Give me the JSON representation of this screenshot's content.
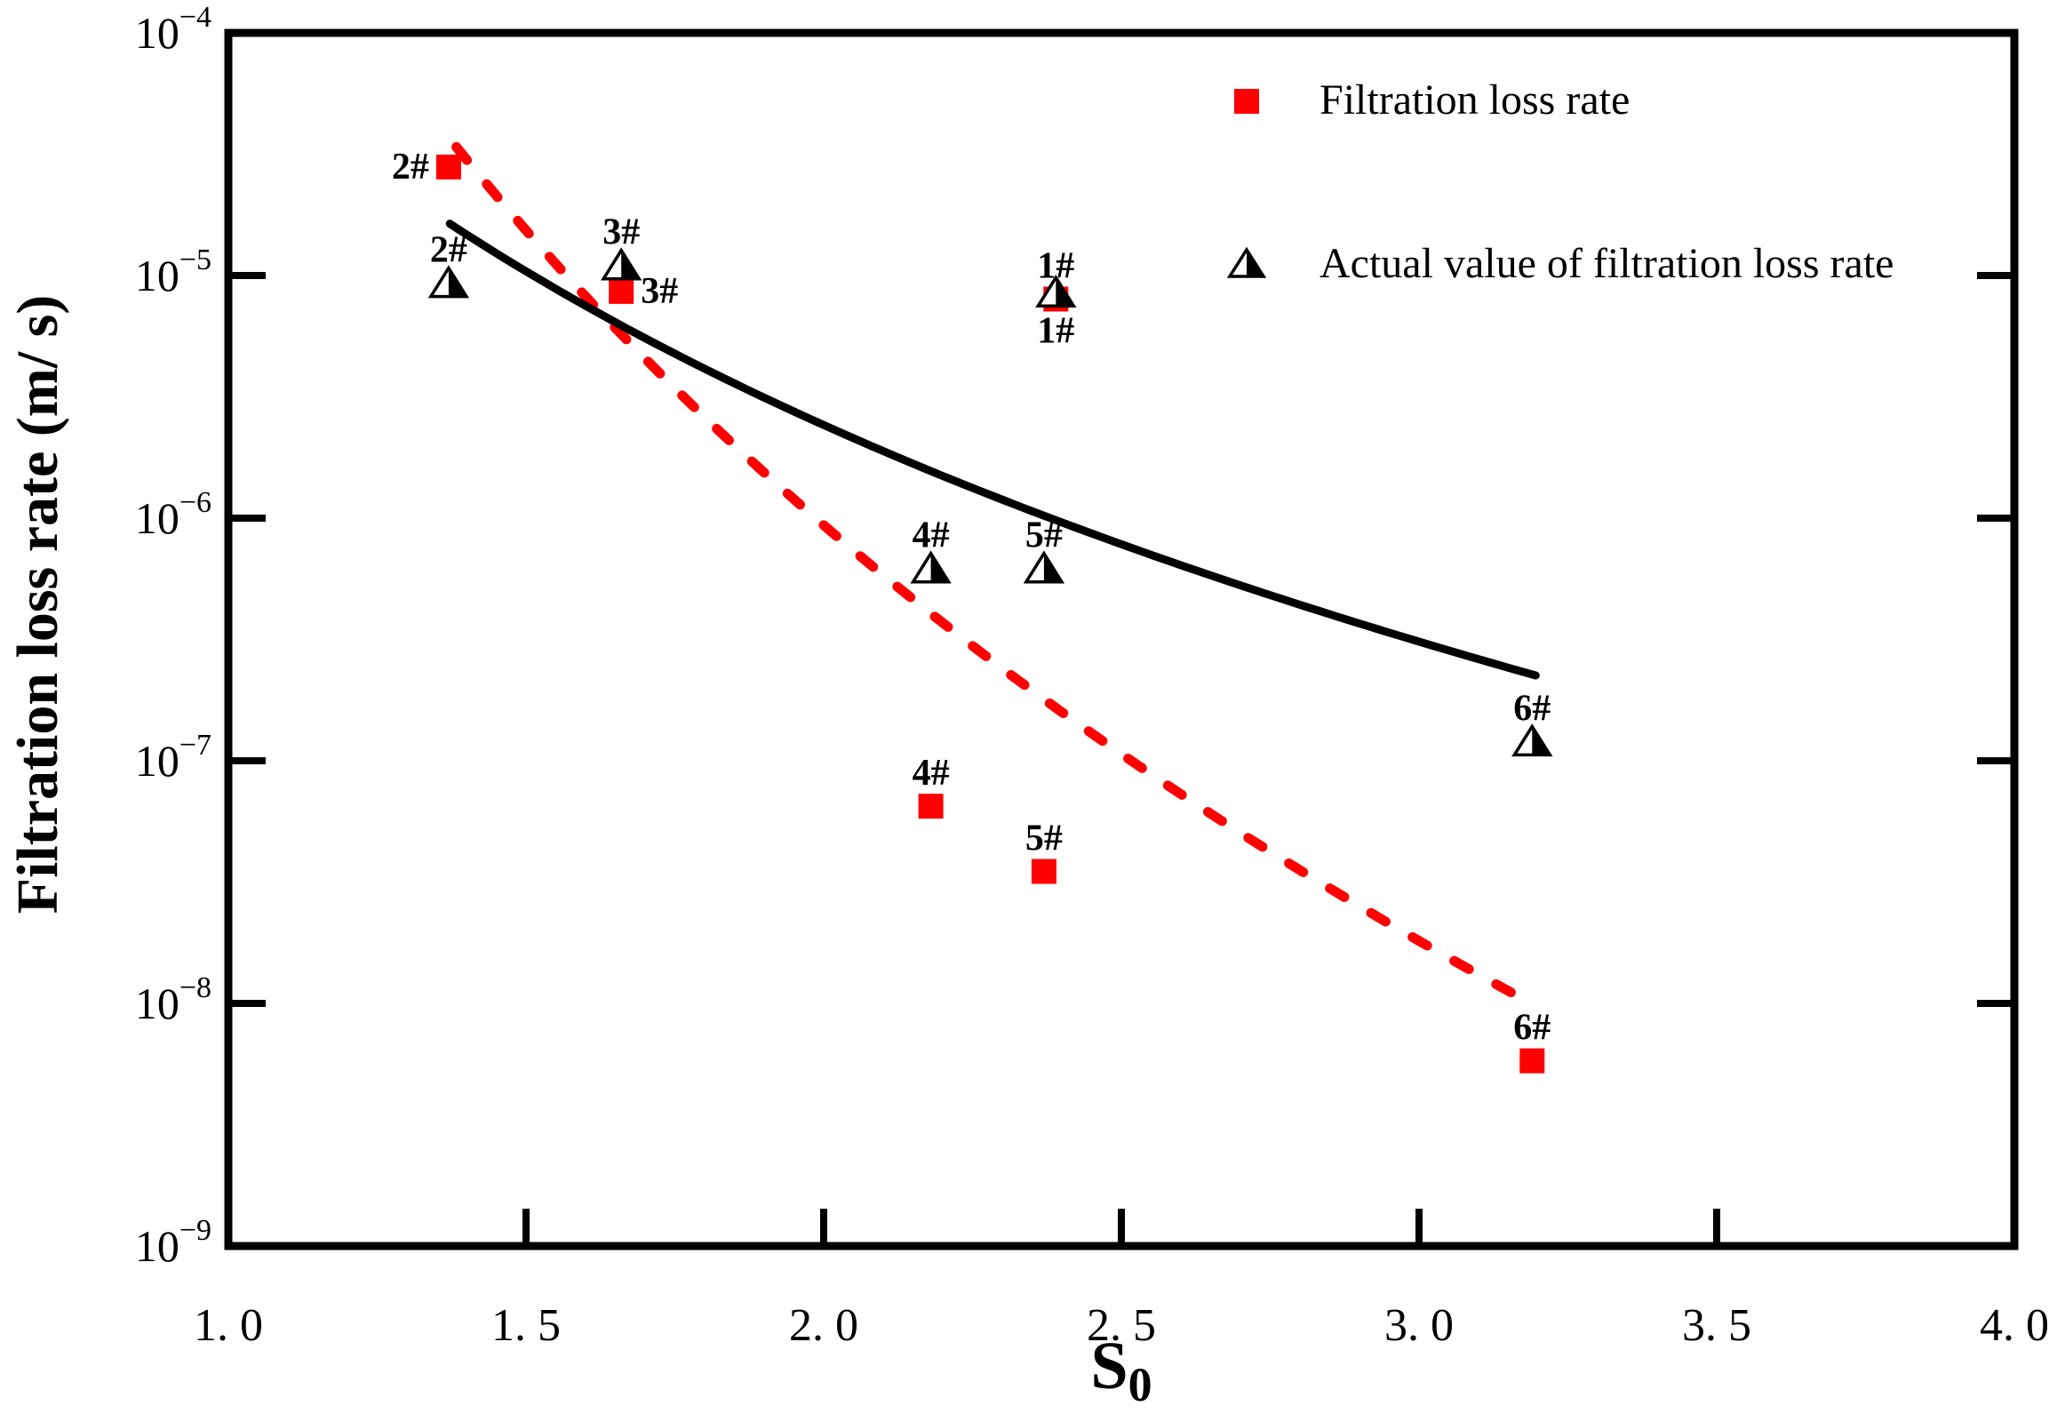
{
  "figure": {
    "background": "#ffffff",
    "accent_red": "#ff0000",
    "accent_black": "#000000"
  },
  "chart_data": {
    "type": "scatter",
    "title": "",
    "xlabel": {
      "base": "S",
      "sub": "0"
    },
    "ylabel": "Filtration loss rate (m/ s)",
    "x_axis": {
      "min": 1.0,
      "max": 4.0,
      "tick_values": [
        1.0,
        1.5,
        2.0,
        2.5,
        3.0,
        3.5,
        4.0
      ],
      "tick_labels": [
        "1. 0",
        "1. 5",
        "2. 0",
        "2. 5",
        "3. 0",
        "3. 5",
        "4. 0"
      ],
      "inner_tick_values": [
        1.5,
        2.0,
        2.5,
        3.0,
        3.5
      ]
    },
    "y_axis": {
      "scale": "log",
      "min": 1e-09,
      "max": 0.0001,
      "tick_exponents": [
        -4,
        -5,
        -6,
        -7,
        -8,
        -9
      ],
      "inner_tick_exponents": [
        -5,
        -6,
        -7,
        -8
      ],
      "label_format": "10^exp"
    },
    "grid": false,
    "legend_position": "top-right",
    "legend": {
      "items": [
        {
          "label": "Filtration loss rate",
          "marker": "square",
          "color": "#ff0000"
        },
        {
          "label": "Actual value of filtration loss rate",
          "marker": "triangle-half",
          "color": "#000000"
        }
      ]
    },
    "series": [
      {
        "name": "Filtration loss rate",
        "marker": "square",
        "color": "#ff0000",
        "points": [
          {
            "label": "1#",
            "x": 2.39,
            "y": 8e-06,
            "label_pos": "above"
          },
          {
            "label": "2#",
            "x": 1.37,
            "y": 2.8e-05,
            "label_pos": "left"
          },
          {
            "label": "3#",
            "x": 1.66,
            "y": 8.6e-06,
            "label_pos": "right"
          },
          {
            "label": "4#",
            "x": 2.18,
            "y": 6.5e-08,
            "label_pos": "above"
          },
          {
            "label": "5#",
            "x": 2.37,
            "y": 3.5e-08,
            "label_pos": "above"
          },
          {
            "label": "6#",
            "x": 3.19,
            "y": 5.8e-09,
            "label_pos": "above"
          }
        ]
      },
      {
        "name": "Actual value of filtration loss rate",
        "marker": "triangle-half",
        "color": "#000000",
        "points": [
          {
            "label": "1#",
            "x": 2.39,
            "y": 8.5e-06,
            "label_pos": "below"
          },
          {
            "label": "2#",
            "x": 1.37,
            "y": 9.3e-06,
            "label_pos": "above"
          },
          {
            "label": "3#",
            "x": 1.66,
            "y": 1.1e-05,
            "label_pos": "above"
          },
          {
            "label": "4#",
            "x": 2.18,
            "y": 6.2e-07,
            "label_pos": "above"
          },
          {
            "label": "5#",
            "x": 2.37,
            "y": 6.2e-07,
            "label_pos": "above"
          },
          {
            "label": "6#",
            "x": 3.19,
            "y": 1.2e-07,
            "label_pos": "above"
          }
        ]
      }
    ],
    "trend_lines": [
      {
        "name": "filtration-loss-rate-fit",
        "series": "Filtration loss rate",
        "style": "dashed",
        "color": "#ff0000",
        "stroke_width": 11,
        "power_law": {
          "log10_a": -3.1,
          "b": -9.73
        },
        "x_start": 1.383,
        "x_end": 3.17
      },
      {
        "name": "actual-value-fit",
        "series": "Actual value of filtration loss rate",
        "style": "solid",
        "color": "#000000",
        "stroke_width": 9,
        "power_law": {
          "log10_a": -4.09,
          "b": -5.07
        },
        "x_start": 1.372,
        "x_end": 3.196
      }
    ]
  }
}
